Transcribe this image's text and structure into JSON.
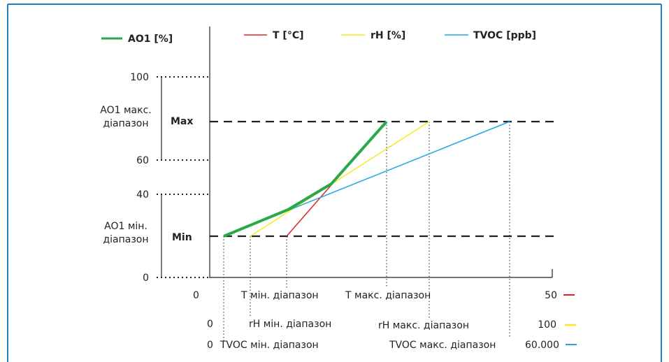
{
  "legend": {
    "ao1": "AO1 [%]",
    "t": "T [°C]",
    "rh": "rH [%]",
    "tvoc": "TVOC [ppb]"
  },
  "y_axis": {
    "ticks": [
      "100",
      "60",
      "40",
      "0"
    ],
    "max_range_label": [
      "AO1 макс.",
      "діапазон"
    ],
    "min_range_label": [
      "AO1 мін.",
      "діапазон"
    ],
    "max_label": "Max",
    "min_label": "Min"
  },
  "x_axis": {
    "t_row": {
      "start": "0",
      "min": "T мін. діапазон",
      "max": "T макс. діапазон",
      "end": "50"
    },
    "rh_row": {
      "start": "0",
      "min": "rH мін. діапазон",
      "max": "rH макс. діапазон",
      "end": "100"
    },
    "tvoc_row": {
      "start": "0",
      "min": "TVOC мін. діапазон",
      "max": "TVOC макс. діапазон",
      "end": "60.000"
    }
  },
  "colors": {
    "ao1": "#2aa84a",
    "t": "#d9262b",
    "rh": "#f4ea1f",
    "tvoc": "#22a6df",
    "frame": "#1f7fc4",
    "axis": "#222222"
  }
}
